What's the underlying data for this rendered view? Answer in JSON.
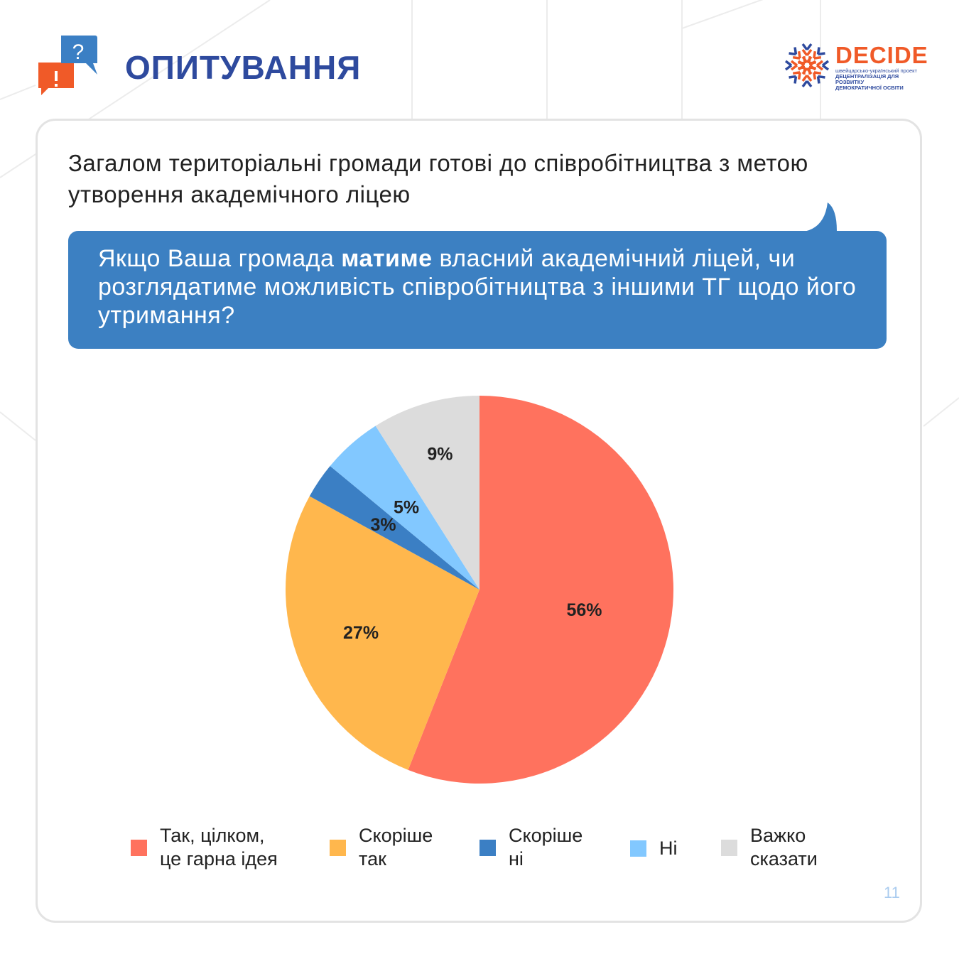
{
  "header": {
    "title": "ОПИТУВАННЯ",
    "icon": "chat-question-exclamation-icon"
  },
  "logo": {
    "name": "DECIDE",
    "subtitle_1": "швейцарсько-український проект",
    "subtitle_2": "ДЕЦЕНТРАЛІЗАЦІЯ ДЛЯ РОЗВИТКУ",
    "subtitle_3": "ДЕМОКРАТИЧНОЇ ОСВІТИ"
  },
  "statement": "Загалом територіальні громади готові до співробітництва з метою утворення академічного ліцею",
  "question": {
    "part1": "Якщо Ваша громада ",
    "bold": "матиме",
    "part2": " власний академічний ліцей, чи розглядатиме можливість співробітництва з іншими ТГ щодо його утримання?"
  },
  "colors": {
    "title": "#2E4A9E",
    "bubble": "#3C80C2",
    "accent": "#F05A28"
  },
  "chart_data": {
    "type": "pie",
    "title": "",
    "categories": [
      "Так, цілком, це гарна ідея",
      "Скоріше так",
      "Скоріше ні",
      "Ні",
      "Важко сказати"
    ],
    "values": [
      56,
      27,
      3,
      5,
      9
    ],
    "labels": [
      "56%",
      "27%",
      "3%",
      "5%",
      "9%"
    ],
    "colors": [
      "#FF725E",
      "#FFB74D",
      "#3B7FC4",
      "#82C8FF",
      "#DCDCDC"
    ],
    "start": "top",
    "direction": "clockwise",
    "legend_position": "bottom",
    "legend": [
      "Так, цілком,\nце гарна ідея",
      "Скоріше\nтак",
      "Скоріше\nні",
      "Ні",
      "Важко\nсказати"
    ]
  },
  "page_number": "11"
}
